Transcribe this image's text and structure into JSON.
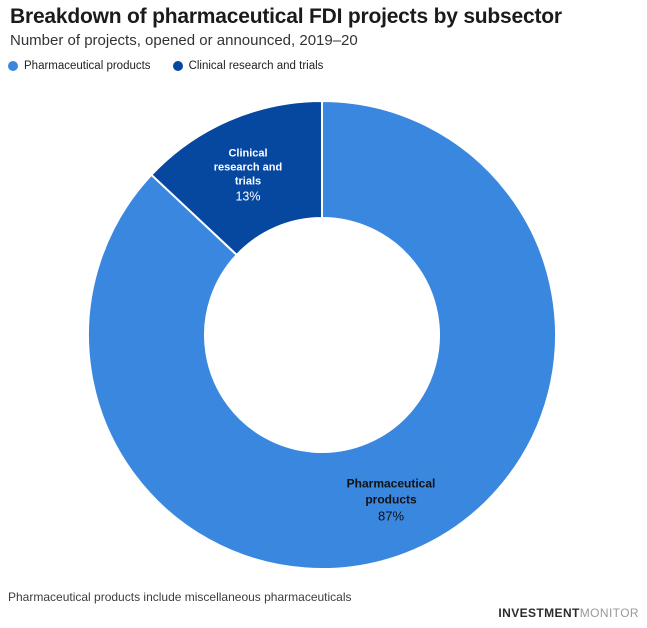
{
  "header": {
    "title": "Breakdown of pharmaceutical FDI projects by subsector",
    "subtitle": "Number of projects, opened or announced, 2019–20"
  },
  "legend": {
    "items": [
      {
        "label": "Pharmaceutical products",
        "color": "#3a87e0"
      },
      {
        "label": "Clinical research and trials",
        "color": "#0647a0"
      }
    ]
  },
  "chart_data": {
    "type": "pie",
    "subtype": "donut",
    "title": "Breakdown of pharmaceutical FDI projects by subsector",
    "subtitle": "Number of projects, opened or announced, 2019–20",
    "categories": [
      "Pharmaceutical products",
      "Clinical research and trials"
    ],
    "values": [
      87,
      13
    ],
    "unit": "percent",
    "colors": [
      "#3a87e0",
      "#0647a0"
    ],
    "separator_color": "#ffffff",
    "legend_position": "top-left",
    "start_angle_deg": 0,
    "direction": "clockwise",
    "slice_labels": [
      {
        "name": "Pharmaceutical products",
        "value": "87%"
      },
      {
        "name": "Clinical research and trials",
        "value": "13%"
      }
    ]
  },
  "footnote": "Pharmaceutical products include miscellaneous pharmaceuticals",
  "logo": {
    "bold": "INVESTMENT",
    "light": "MONITOR"
  }
}
